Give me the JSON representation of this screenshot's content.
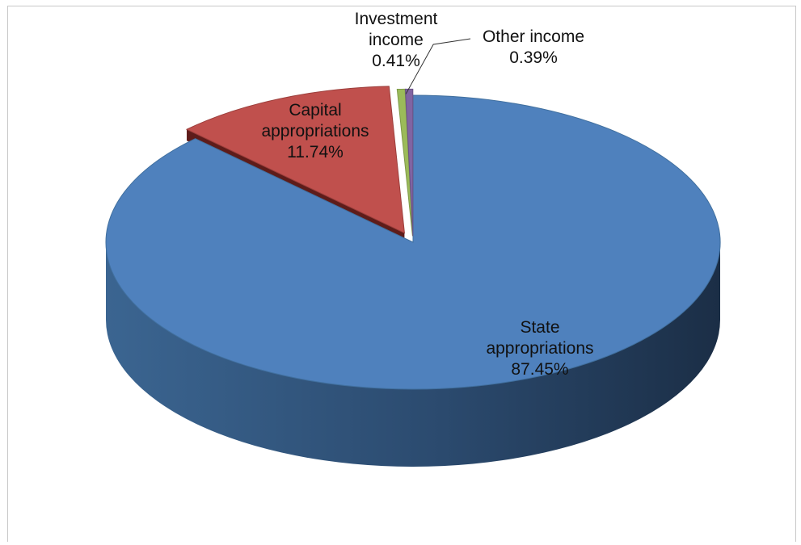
{
  "chart_data": {
    "type": "pie",
    "style": "3d",
    "title": "",
    "slices": [
      {
        "label_lines": [
          "State",
          "appropriations"
        ],
        "percent_label": "87.45%",
        "value": 87.45,
        "color": "#4f81bd"
      },
      {
        "label_lines": [
          "Capital",
          "appropriations"
        ],
        "percent_label": "11.74%",
        "value": 11.74,
        "color": "#c0504d"
      },
      {
        "label_lines": [
          "Investment",
          "income"
        ],
        "percent_label": "0.41%",
        "value": 0.41,
        "color": "#9bbb59"
      },
      {
        "label_lines": [
          "Other income"
        ],
        "percent_label": "0.39%",
        "value": 0.39,
        "color": "#8064a2"
      }
    ],
    "legend": "none",
    "grid": false
  }
}
